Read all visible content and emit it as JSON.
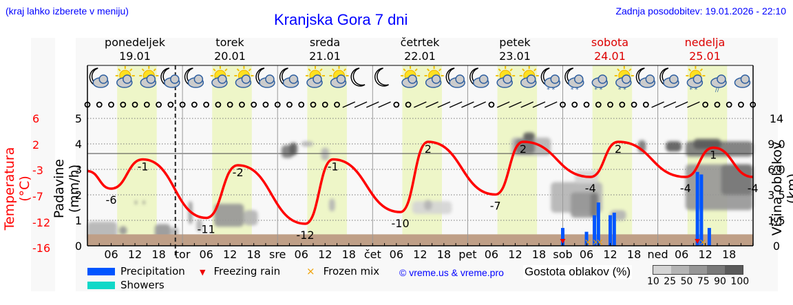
{
  "header": {
    "location_hint": "(kraj lahko izberete v meniju)",
    "title": "Kranjska Gora 7 dni",
    "last_update": "Zadnja posodobitev: 19.01.2026 - 22:10"
  },
  "days": [
    {
      "name": "ponedeljek",
      "date": "19.01",
      "weekend": false,
      "abbr": ""
    },
    {
      "name": "torek",
      "date": "20.01",
      "weekend": false,
      "abbr": "tor"
    },
    {
      "name": "sreda",
      "date": "21.01",
      "weekend": false,
      "abbr": "sre"
    },
    {
      "name": "četrtek",
      "date": "22.01",
      "weekend": false,
      "abbr": "čet"
    },
    {
      "name": "petek",
      "date": "23.01",
      "weekend": false,
      "abbr": "pet"
    },
    {
      "name": "sobota",
      "date": "24.01",
      "weekend": true,
      "abbr": "sob"
    },
    {
      "name": "nedelja",
      "date": "25.01",
      "weekend": true,
      "abbr": "ned"
    }
  ],
  "axes": {
    "left_outer_label": "Temperatura (°C)",
    "left_outer_ticks": [
      "6",
      "2",
      "-3",
      "-7",
      "-12",
      "-16"
    ],
    "left_inner_label": "Padavine (mm/h)",
    "left_inner_ticks": [
      "5",
      "4",
      "3",
      "2",
      "1",
      "0"
    ],
    "right_label": "Višina oblakov (km)",
    "right_ticks": [
      "14",
      "9.0",
      "6.0",
      "3.5",
      "1.5",
      "0"
    ],
    "hour_ticks": [
      "06",
      "12",
      "18"
    ]
  },
  "legend": {
    "precipitation": "Precipitation",
    "showers": "Showers",
    "freezing_rain": "Freezing rain",
    "frozen_mix": "Frozen mix",
    "credit": "© vreme.us & vreme.pro",
    "cloud_density_label": "Gostota oblakov (%)",
    "cloud_scale": [
      "10",
      "25",
      "50",
      "75",
      "90",
      "100"
    ]
  },
  "colors": {
    "precipitation": "#0055ff",
    "showers": "#10d8c8",
    "freezing_rain": "#ee0000",
    "frozen_mix": "#f0a000",
    "temperature": "#ff0000",
    "daylight": "#eef6c8",
    "ground": "#bf9f87",
    "link": "#0000ff",
    "cloud_scale": [
      "#d4d4d4",
      "#b4b4b4",
      "#969696",
      "#787878",
      "#5a5a5a"
    ]
  },
  "chart_data": {
    "type": "line",
    "title": "Kranjska Gora 7 dni",
    "xlabel": "",
    "ylabel": "Temperatura (°C)",
    "x_range_hours": [
      0,
      168
    ],
    "temperature_labels": [
      {
        "hour": 6,
        "value": -6,
        "kind": "min"
      },
      {
        "hour": 14,
        "value": -1,
        "kind": "max"
      },
      {
        "hour": 30,
        "value": -11,
        "kind": "min"
      },
      {
        "hour": 38,
        "value": -2,
        "kind": "max"
      },
      {
        "hour": 55,
        "value": -12,
        "kind": "min"
      },
      {
        "hour": 62,
        "value": -1,
        "kind": "max"
      },
      {
        "hour": 79,
        "value": -10,
        "kind": "min"
      },
      {
        "hour": 86,
        "value": 2,
        "kind": "max"
      },
      {
        "hour": 103,
        "value": -7,
        "kind": "min"
      },
      {
        "hour": 110,
        "value": 2,
        "kind": "max"
      },
      {
        "hour": 127,
        "value": -4,
        "kind": "min"
      },
      {
        "hour": 134,
        "value": 2,
        "kind": "max"
      },
      {
        "hour": 151,
        "value": -4,
        "kind": "min"
      },
      {
        "hour": 158,
        "value": 1,
        "kind": "max"
      },
      {
        "hour": 168,
        "value": -4,
        "kind": "end"
      }
    ],
    "precipitation_mm_h": [
      {
        "hour": 120,
        "value": 0.7,
        "freezing_rain": true
      },
      {
        "hour": 126,
        "value": 0.55,
        "frozen_mix": true
      },
      {
        "hour": 128,
        "value": 1.2,
        "frozen_mix": true
      },
      {
        "hour": 129,
        "value": 1.7,
        "frozen_mix": true
      },
      {
        "hour": 132,
        "value": 1.2
      },
      {
        "hour": 133,
        "value": 1.3
      },
      {
        "hour": 154,
        "value": 2.9,
        "freezing_rain": true
      },
      {
        "hour": 155,
        "value": 2.8,
        "frozen_mix": true
      },
      {
        "hour": 157,
        "value": 0.7
      }
    ],
    "now_marker_hour": 22.2,
    "ylim_precip": [
      0,
      5.5
    ],
    "ylim_temp": [
      -16,
      6
    ],
    "cloud_height_km_ticks": [
      0,
      1.5,
      3.5,
      6.0,
      9.0,
      14
    ]
  }
}
